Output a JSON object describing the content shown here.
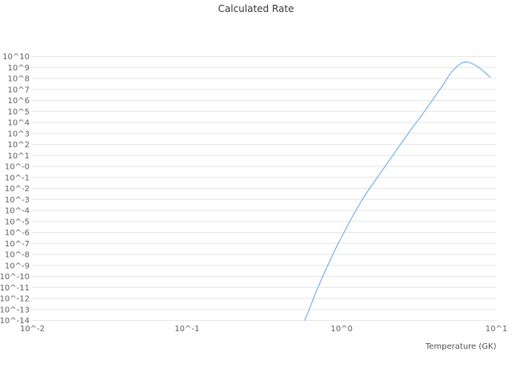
{
  "colors": {
    "background": "#ffffff",
    "grid": "#e6e6e6",
    "tick_label": "#666666",
    "title": "#3c3c3c",
    "axis_label": "#555555",
    "line": "#7cb5ec"
  },
  "chart_data": {
    "type": "line",
    "title": "Calculated Rate",
    "xlabel": "Temperature (GK)",
    "ylabel": "",
    "x_scale": "log",
    "y_scale": "log",
    "x_range_log10": [
      -2,
      1
    ],
    "y_range_log10": [
      -14,
      10
    ],
    "grid": "horizontal-only",
    "legend": "none",
    "x_ticks": [
      {
        "label": "10^-2",
        "log": -2
      },
      {
        "label": "10^-1",
        "log": -1
      },
      {
        "label": "10^0",
        "log": 0
      },
      {
        "label": "10^1",
        "log": 1
      }
    ],
    "y_ticks": [
      {
        "label": "10^10",
        "log": 10
      },
      {
        "label": "10^9",
        "log": 9
      },
      {
        "label": "10^8",
        "log": 8
      },
      {
        "label": "10^7",
        "log": 7
      },
      {
        "label": "10^6",
        "log": 6
      },
      {
        "label": "10^5",
        "log": 5
      },
      {
        "label": "10^4",
        "log": 4
      },
      {
        "label": "10^3",
        "log": 3
      },
      {
        "label": "10^2",
        "log": 2
      },
      {
        "label": "10^1",
        "log": 1
      },
      {
        "label": "10^-0",
        "log": 0
      },
      {
        "label": "10^-1",
        "log": -1
      },
      {
        "label": "10^-2",
        "log": -2
      },
      {
        "label": "10^-3",
        "log": -3
      },
      {
        "label": "10^-4",
        "log": -4
      },
      {
        "label": "10^-5",
        "log": -5
      },
      {
        "label": "10^-6",
        "log": -6
      },
      {
        "label": "10^-7",
        "log": -7
      },
      {
        "label": "10^-8",
        "log": -8
      },
      {
        "label": "10^-9",
        "log": -9
      },
      {
        "label": "10^-10",
        "log": -10
      },
      {
        "label": "10^-11",
        "log": -11
      },
      {
        "label": "10^-12",
        "log": -12
      },
      {
        "label": "10^-13",
        "log": -13
      },
      {
        "label": "10^-14",
        "log": -14
      }
    ],
    "series": [
      {
        "name": "Calculated Rate",
        "color": "#7cb5ec",
        "points_log10": [
          [
            -0.24,
            -14.0
          ],
          [
            -0.225,
            -13.5
          ],
          [
            -0.21,
            -13.0
          ],
          [
            -0.195,
            -12.45
          ],
          [
            -0.18,
            -11.9
          ],
          [
            -0.165,
            -11.4
          ],
          [
            -0.15,
            -10.9
          ],
          [
            -0.135,
            -10.4
          ],
          [
            -0.12,
            -9.9
          ],
          [
            -0.105,
            -9.45
          ],
          [
            -0.09,
            -9.0
          ],
          [
            -0.075,
            -8.55
          ],
          [
            -0.06,
            -8.1
          ],
          [
            -0.045,
            -7.65
          ],
          [
            -0.03,
            -7.2
          ],
          [
            -0.015,
            -6.8
          ],
          [
            0.0,
            -6.4
          ],
          [
            0.02,
            -5.85
          ],
          [
            0.04,
            -5.3
          ],
          [
            0.06,
            -4.8
          ],
          [
            0.08,
            -4.3
          ],
          [
            0.1,
            -3.8
          ],
          [
            0.125,
            -3.2
          ],
          [
            0.15,
            -2.65
          ],
          [
            0.175,
            -2.1
          ],
          [
            0.2,
            -1.6
          ],
          [
            0.225,
            -1.1
          ],
          [
            0.25,
            -0.6
          ],
          [
            0.275,
            -0.1
          ],
          [
            0.3,
            0.4
          ],
          [
            0.33,
            1.0
          ],
          [
            0.36,
            1.6
          ],
          [
            0.39,
            2.2
          ],
          [
            0.42,
            2.8
          ],
          [
            0.45,
            3.4
          ],
          [
            0.48,
            3.95
          ],
          [
            0.51,
            4.5
          ],
          [
            0.54,
            5.1
          ],
          [
            0.57,
            5.7
          ],
          [
            0.6,
            6.3
          ],
          [
            0.63,
            6.9
          ],
          [
            0.66,
            7.5
          ],
          [
            0.69,
            8.2
          ],
          [
            0.72,
            8.75
          ],
          [
            0.75,
            9.15
          ],
          [
            0.775,
            9.4
          ],
          [
            0.8,
            9.5
          ],
          [
            0.825,
            9.45
          ],
          [
            0.85,
            9.3
          ],
          [
            0.875,
            9.1
          ],
          [
            0.9,
            8.85
          ],
          [
            0.93,
            8.5
          ],
          [
            0.96,
            8.1
          ]
        ]
      }
    ]
  }
}
